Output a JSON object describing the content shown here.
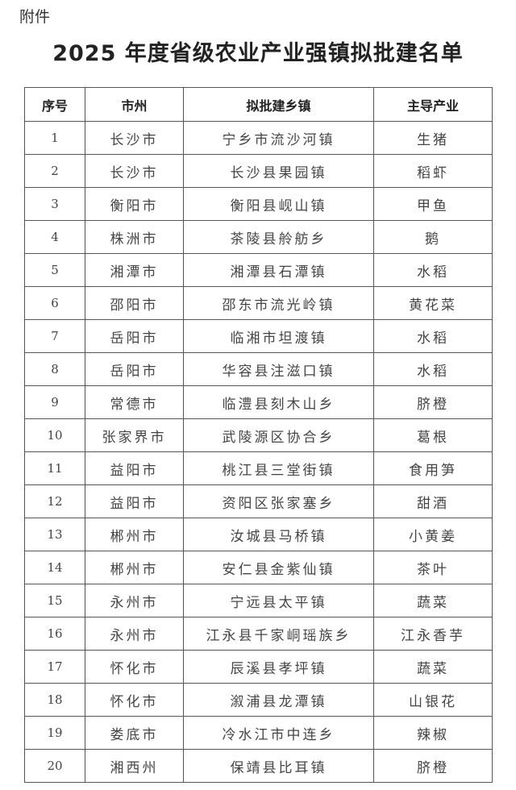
{
  "attachment_label": "附件",
  "title": "2025 年度省级农业产业强镇拟批建名单",
  "table": {
    "headers": [
      "序号",
      "市州",
      "拟批建乡镇",
      "主导产业"
    ],
    "rows": [
      [
        "1",
        "长沙市",
        "宁乡市流沙河镇",
        "生猪"
      ],
      [
        "2",
        "长沙市",
        "长沙县果园镇",
        "稻虾"
      ],
      [
        "3",
        "衡阳市",
        "衡阳县岘山镇",
        "甲鱼"
      ],
      [
        "4",
        "株洲市",
        "茶陵县舲舫乡",
        "鹅"
      ],
      [
        "5",
        "湘潭市",
        "湘潭县石潭镇",
        "水稻"
      ],
      [
        "6",
        "邵阳市",
        "邵东市流光岭镇",
        "黄花菜"
      ],
      [
        "7",
        "岳阳市",
        "临湘市坦渡镇",
        "水稻"
      ],
      [
        "8",
        "岳阳市",
        "华容县注滋口镇",
        "水稻"
      ],
      [
        "9",
        "常德市",
        "临澧县刻木山乡",
        "脐橙"
      ],
      [
        "10",
        "张家界市",
        "武陵源区协合乡",
        "葛根"
      ],
      [
        "11",
        "益阳市",
        "桃江县三堂街镇",
        "食用笋"
      ],
      [
        "12",
        "益阳市",
        "资阳区张家塞乡",
        "甜酒"
      ],
      [
        "13",
        "郴州市",
        "汝城县马桥镇",
        "小黄姜"
      ],
      [
        "14",
        "郴州市",
        "安仁县金紫仙镇",
        "茶叶"
      ],
      [
        "15",
        "永州市",
        "宁远县太平镇",
        "蔬菜"
      ],
      [
        "16",
        "永州市",
        "江永县千家峒瑶族乡",
        "江永香芋"
      ],
      [
        "17",
        "怀化市",
        "辰溪县孝坪镇",
        "蔬菜"
      ],
      [
        "18",
        "怀化市",
        "溆浦县龙潭镇",
        "山银花"
      ],
      [
        "19",
        "娄底市",
        "冷水江市中连乡",
        "辣椒"
      ],
      [
        "20",
        "湘西州",
        "保靖县比耳镇",
        "脐橙"
      ]
    ]
  }
}
